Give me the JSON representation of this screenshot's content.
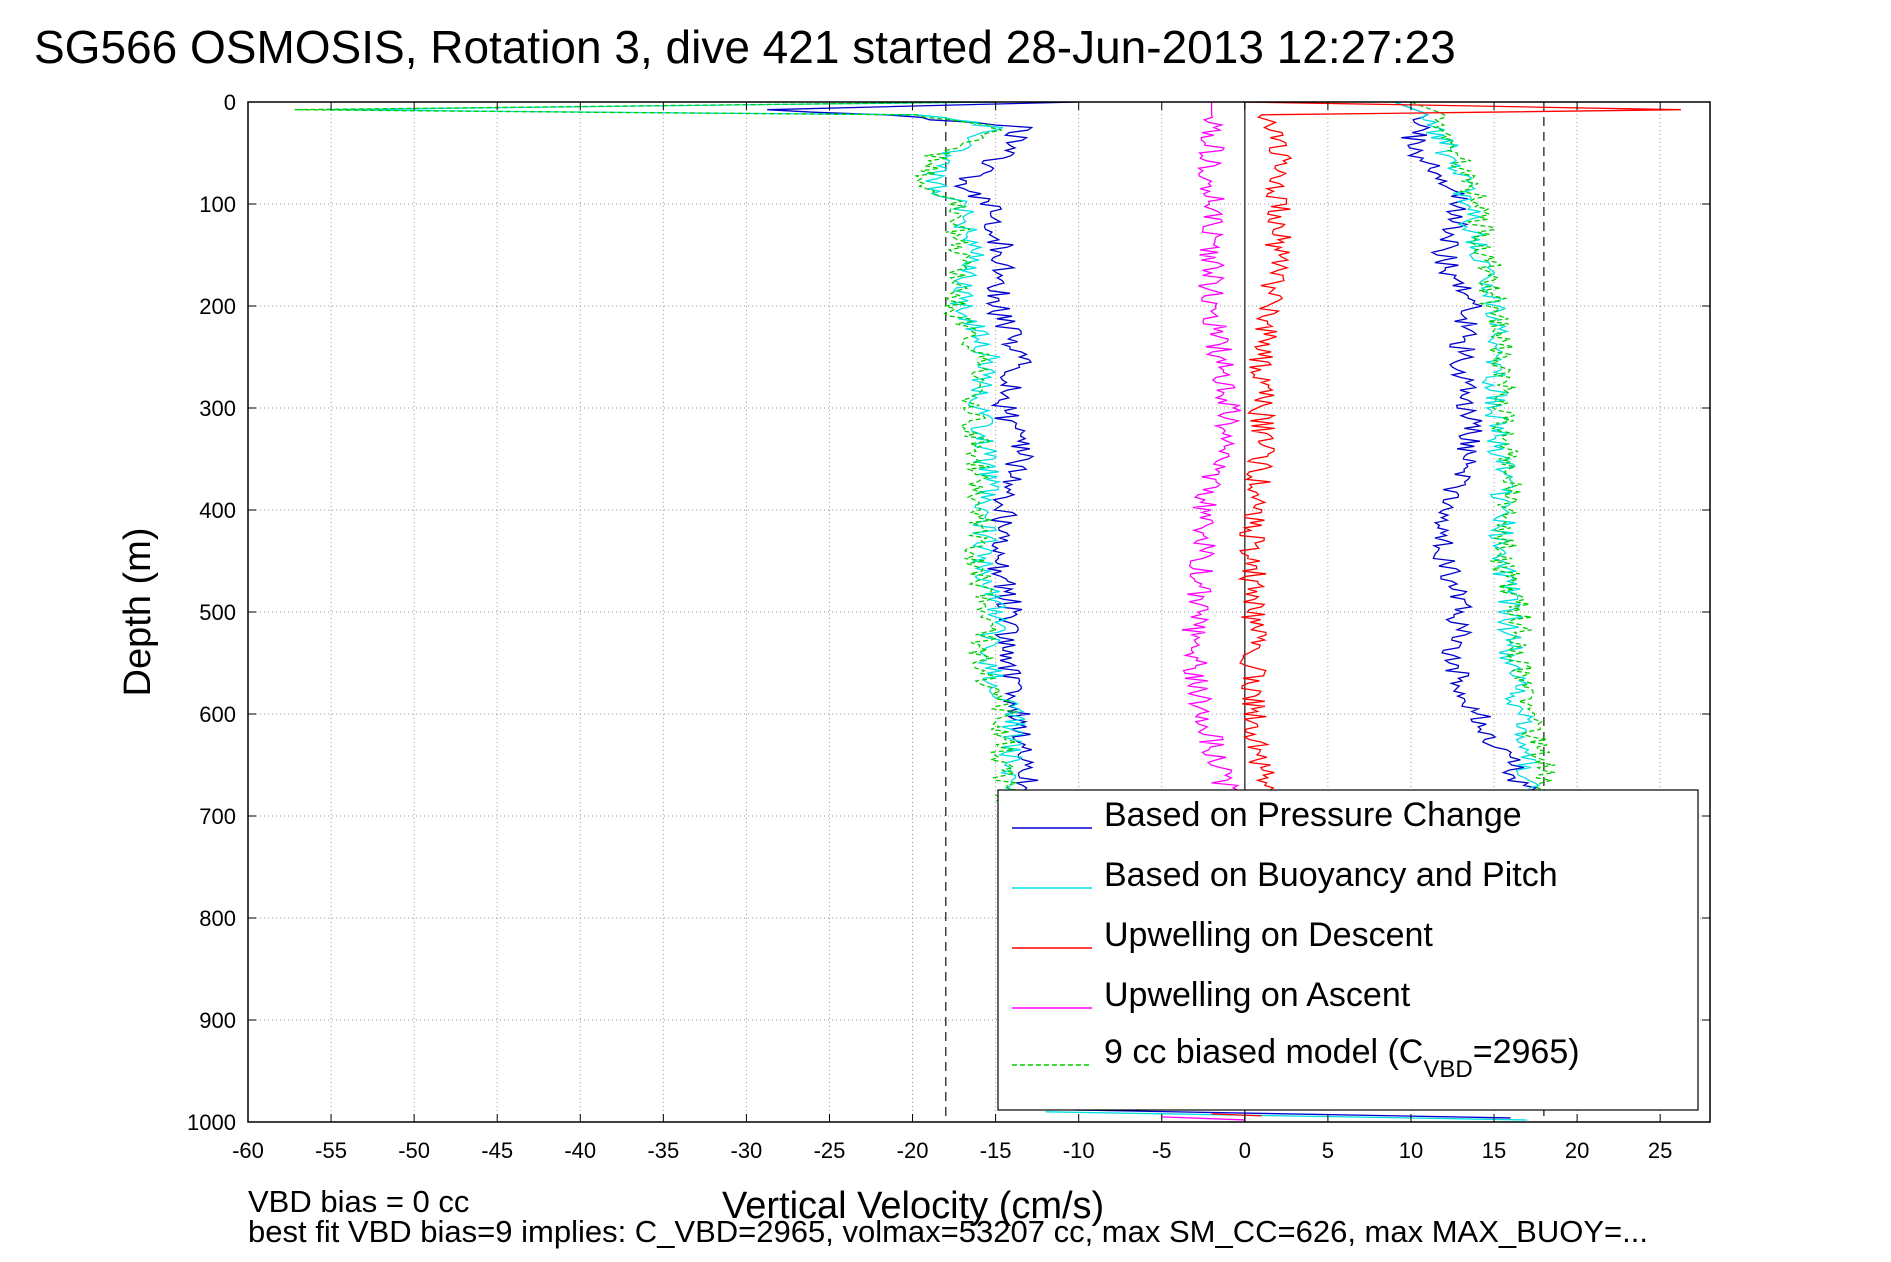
{
  "title": "SG566 OSMOSIS, Rotation 3, dive 421 started 28-Jun-2013 12:27:23",
  "chart_data": {
    "type": "line",
    "xlabel": "Vertical Velocity (cm/s)",
    "ylabel": "Depth (m)",
    "xlim": [
      -60,
      28
    ],
    "ylim": [
      0,
      1000
    ],
    "y_reversed": true,
    "grid": true,
    "xticks": [
      -60,
      -55,
      -50,
      -45,
      -40,
      -35,
      -30,
      -25,
      -20,
      -15,
      -10,
      -5,
      0,
      5,
      10,
      15,
      20,
      25
    ],
    "yticks": [
      0,
      100,
      200,
      300,
      400,
      500,
      600,
      700,
      800,
      900,
      1000
    ],
    "reference_lines": [
      -18,
      0,
      18
    ],
    "legend_placement": "bottom-right",
    "legend": [
      {
        "label": "Based on Pressure Change",
        "color": "#0000cc"
      },
      {
        "label": "Based on Buoyancy and Pitch",
        "color": "#00e0e0"
      },
      {
        "label": "Upwelling on Descent",
        "color": "#ff0000"
      },
      {
        "label": "Upwelling on Ascent",
        "color": "#ff00ff"
      },
      {
        "label": "9 cc biased model (C",
        "sub": "VBD",
        "suffix": "=2965)",
        "color": "#00cc00",
        "dashed": true
      }
    ],
    "series": [
      {
        "key": "pressure_descent",
        "color": "#0000cc",
        "depth": [
          0,
          8,
          12,
          25,
          50,
          80,
          100,
          150,
          200,
          250,
          300,
          345,
          400,
          450,
          500,
          550,
          600,
          650,
          700
        ],
        "values": [
          -10,
          -30,
          -22,
          -13.5,
          -14.5,
          -17,
          -15.5,
          -14.5,
          -15,
          -13.5,
          -14.5,
          -13.5,
          -14.5,
          -15,
          -14,
          -14.5,
          -13.5,
          -13,
          -13
        ]
      },
      {
        "key": "buoyancy_descent",
        "color": "#00e0e0",
        "depth": [
          0,
          8,
          12,
          25,
          50,
          80,
          100,
          150,
          200,
          250,
          300,
          345,
          400,
          450,
          500,
          550,
          600,
          650,
          700
        ],
        "values": [
          -15,
          -58,
          -20,
          -14.5,
          -18,
          -19,
          -17,
          -16.5,
          -17,
          -15.5,
          -16,
          -15.5,
          -15.5,
          -15.8,
          -15,
          -15.5,
          -14,
          -14,
          -13.5
        ]
      },
      {
        "key": "model_descent",
        "color": "#00cc00",
        "dashed": true,
        "depth": [
          0,
          8,
          12,
          25,
          50,
          80,
          100,
          150,
          200,
          250,
          300,
          345,
          400,
          450,
          500,
          550,
          600,
          650,
          700
        ],
        "values": [
          -15,
          -60,
          -20,
          -15,
          -18.5,
          -19.5,
          -17.5,
          -17,
          -17.5,
          -16,
          -16.5,
          -16,
          -16,
          -16.2,
          -15.5,
          -16,
          -14.5,
          -14.5,
          -14
        ]
      },
      {
        "key": "pressure_ascent",
        "color": "#0000cc",
        "depth": [
          0,
          12,
          40,
          80,
          100,
          150,
          200,
          250,
          300,
          350,
          400,
          450,
          500,
          550,
          600,
          650,
          680
        ],
        "values": [
          9,
          11,
          10,
          12,
          13,
          12,
          13.5,
          13,
          13.5,
          13.5,
          12,
          12,
          13,
          12.5,
          14,
          16,
          17
        ]
      },
      {
        "key": "buoyancy_ascent",
        "color": "#00e0e0",
        "depth": [
          0,
          12,
          40,
          80,
          100,
          150,
          200,
          250,
          300,
          350,
          400,
          450,
          500,
          550,
          600,
          650,
          680
        ],
        "values": [
          9,
          11,
          12,
          13,
          13.5,
          14,
          15,
          15,
          15,
          15.5,
          15.5,
          15.5,
          16,
          16,
          16.5,
          17,
          17
        ]
      },
      {
        "key": "model_ascent",
        "color": "#00cc00",
        "dashed": true,
        "depth": [
          0,
          12,
          40,
          80,
          100,
          150,
          200,
          250,
          300,
          350,
          400,
          450,
          500,
          550,
          600,
          650,
          680
        ],
        "values": [
          10,
          12,
          12.5,
          13.5,
          14,
          14.5,
          15,
          15.5,
          15.5,
          16,
          15.8,
          15.5,
          16.5,
          16.5,
          17,
          18,
          17.5
        ]
      },
      {
        "key": "upwelling_descent",
        "color": "#ff0000",
        "depth": [
          0,
          8,
          12,
          50,
          100,
          150,
          200,
          250,
          300,
          350,
          400,
          450,
          500,
          550,
          600,
          650,
          680
        ],
        "values": [
          0,
          28,
          1,
          2,
          2,
          2,
          1.5,
          1,
          1,
          1,
          0.5,
          0.5,
          0.5,
          0.5,
          0.5,
          1,
          1
        ]
      },
      {
        "key": "upwelling_ascent",
        "color": "#ff00ff",
        "depth": [
          0,
          12,
          50,
          100,
          150,
          200,
          250,
          300,
          350,
          400,
          450,
          500,
          550,
          600,
          650,
          680
        ],
        "values": [
          -2,
          -2,
          -2,
          -2,
          -2,
          -2,
          -1.5,
          -1,
          -1.5,
          -2.5,
          -2.5,
          -3,
          -3,
          -2.5,
          -1.5,
          -1
        ]
      }
    ]
  },
  "notes": [
    "VBD bias = 0 cc",
    "best fit VBD bias=9 implies: C_VBD=2965, volmax=53207 cc, max SM_CC=626, max MAX_BUOY=..."
  ]
}
